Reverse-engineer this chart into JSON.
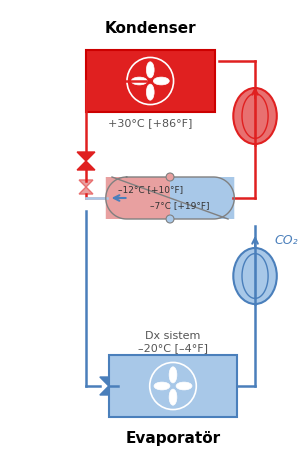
{
  "title_kondenser": "Kondenser",
  "title_evaporator": "Evaporatör",
  "temp_kondenser": "+30°C [+86°F]",
  "temp_cascade_top": "–12°C [+10°F]",
  "temp_cascade_bot": "–7°C [+19°F]",
  "temp_evap": "Dx sistem\n–20°C [–4°F]",
  "co2_label": "CO₂",
  "red_color": "#e02020",
  "red_light": "#e87070",
  "blue_color": "#4a7fbb",
  "blue_light": "#a8c8e8",
  "pink_color": "#e8a0a0",
  "bg_color": "#ffffff"
}
